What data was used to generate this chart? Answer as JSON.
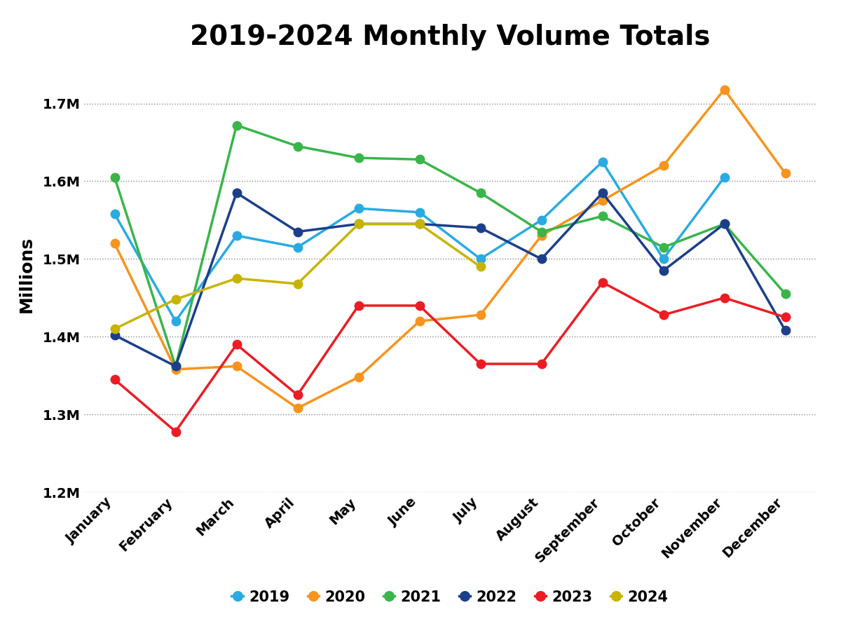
{
  "title": "2019-2024 Monthly Volume Totals",
  "ylabel": "Millions",
  "months": [
    "January",
    "February",
    "March",
    "April",
    "May",
    "June",
    "July",
    "August",
    "September",
    "October",
    "November",
    "December"
  ],
  "series": [
    {
      "year": "2019",
      "values": [
        1558000,
        1420000,
        1530000,
        1515000,
        1565000,
        1560000,
        1500000,
        1550000,
        1625000,
        1500000,
        1605000,
        null
      ],
      "color": "#29ABE2",
      "label": "2019"
    },
    {
      "year": "2020",
      "values": [
        1520000,
        1358000,
        1362000,
        1308000,
        1348000,
        1420000,
        1428000,
        1530000,
        1575000,
        1620000,
        1718000,
        1610000
      ],
      "color": "#F7941D",
      "label": "2020"
    },
    {
      "year": "2021",
      "values": [
        1605000,
        1362000,
        1672000,
        1645000,
        1630000,
        1628000,
        1585000,
        1535000,
        1555000,
        1515000,
        1545000,
        1455000
      ],
      "color": "#39B54A",
      "label": "2021"
    },
    {
      "year": "2022",
      "values": [
        1402000,
        1362000,
        1585000,
        1535000,
        1545000,
        1545000,
        1540000,
        1500000,
        1585000,
        1485000,
        1545000,
        1408000
      ],
      "color": "#1B3F8B",
      "label": "2022"
    },
    {
      "year": "2023",
      "values": [
        1345000,
        1278000,
        1390000,
        1325000,
        1440000,
        1440000,
        1365000,
        1365000,
        1470000,
        1428000,
        1450000,
        1425000
      ],
      "color": "#ED1C24",
      "label": "2023"
    },
    {
      "year": "2024",
      "values": [
        1410000,
        1448000,
        1475000,
        1468000,
        1545000,
        1545000,
        1490000,
        null,
        null,
        null,
        null,
        null
      ],
      "color": "#C8B400",
      "label": "2024"
    }
  ],
  "ylim": [
    1200000,
    1760000
  ],
  "yticks": [
    1200000,
    1300000,
    1400000,
    1500000,
    1600000,
    1700000
  ],
  "ytick_labels": [
    "1.2M",
    "1.3M",
    "1.4M",
    "1.5M",
    "1.6M",
    "1.7M"
  ],
  "background_color": "#FFFFFF",
  "grid_color": "#888888",
  "title_fontsize": 28,
  "axis_label_fontsize": 18,
  "tick_fontsize": 14,
  "legend_fontsize": 15,
  "line_width": 2.5,
  "marker_size": 9
}
